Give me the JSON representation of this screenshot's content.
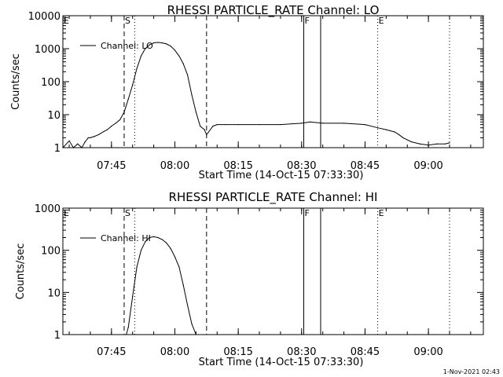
{
  "footer_stamp": "1-Nov-2021 02:43",
  "chart_data": [
    {
      "type": "line",
      "title": "RHESSI PARTICLE_RATE Channel: LO",
      "xlabel": "Start Time (14-Oct-15 07:33:30)",
      "ylabel": "Counts/sec",
      "y_scale": "log",
      "ylim": [
        1,
        10000
      ],
      "xlim": [
        "07:33:30",
        "09:13:00"
      ],
      "x_ticks": [
        "07:45",
        "08:00",
        "08:15",
        "08:30",
        "08:45",
        "09:00"
      ],
      "y_ticks": [
        "1",
        "10",
        "100",
        "1000",
        "10000"
      ],
      "legend": {
        "label": "Channel: LO",
        "placement": "top-left"
      },
      "markers": [
        {
          "time": "07:33:30",
          "label": "E",
          "style": "dotted"
        },
        {
          "time": "07:48:00",
          "label": "S",
          "style": "dashed"
        },
        {
          "time": "07:50:30",
          "label": "",
          "style": "dotted"
        },
        {
          "time": "08:07:30",
          "label": "",
          "style": "dashed"
        },
        {
          "time": "08:30:30",
          "label": "F",
          "style": "solid"
        },
        {
          "time": "08:34:30",
          "label": "",
          "style": "solid"
        },
        {
          "time": "08:48:00",
          "label": "E",
          "style": "dotted"
        },
        {
          "time": "09:05:00",
          "label": "",
          "style": "dotted"
        }
      ],
      "series": [
        {
          "x": [
            "07:33:30",
            "07:35:00",
            "07:36:00",
            "07:37:00",
            "07:38:00",
            "07:38:45",
            "07:39:30",
            "07:40:00",
            "07:41:00",
            "07:42:00",
            "07:43:00",
            "07:44:00",
            "07:45:00",
            "07:46:00",
            "07:47:00",
            "07:48:00",
            "07:49:00",
            "07:50:00",
            "07:51:00",
            "07:52:00",
            "07:53:00",
            "07:54:00",
            "07:55:00",
            "07:56:00",
            "07:57:00",
            "07:58:00",
            "07:59:00",
            "08:00:00",
            "08:01:00",
            "08:02:00",
            "08:03:00",
            "08:04:00",
            "08:05:00",
            "08:06:00",
            "08:07:00",
            "08:07:30",
            "08:08:00",
            "08:09:00",
            "08:10:00",
            "08:12:00",
            "08:15:00",
            "08:20:00",
            "08:25:00",
            "08:30:00",
            "08:32:00",
            "08:35:00",
            "08:40:00",
            "08:45:00",
            "08:48:00",
            "08:50:00",
            "08:52:00",
            "08:53:00",
            "08:54:00",
            "08:56:00",
            "08:58:00",
            "09:00:00",
            "09:02:00",
            "09:04:00",
            "09:05:00"
          ],
          "y": [
            1,
            1.6,
            1,
            1.3,
            1,
            1.5,
            2,
            2,
            2.2,
            2.5,
            3,
            3.5,
            4.5,
            5.5,
            7,
            12,
            30,
            80,
            250,
            600,
            1000,
            1300,
            1500,
            1550,
            1500,
            1400,
            1200,
            900,
            600,
            350,
            160,
            40,
            12,
            4.5,
            3.5,
            2.5,
            3,
            4.5,
            5,
            5,
            5,
            5,
            5,
            5.5,
            6,
            5.5,
            5.5,
            5,
            4,
            3.5,
            3,
            2.5,
            2,
            1.5,
            1.3,
            1.2,
            1.3,
            1.3,
            1.4
          ]
        }
      ]
    },
    {
      "type": "line",
      "title": "RHESSI PARTICLE_RATE Channel: HI",
      "xlabel": "Start Time (14-Oct-15 07:33:30)",
      "ylabel": "Counts/sec",
      "y_scale": "log",
      "ylim": [
        1,
        1000
      ],
      "xlim": [
        "07:33:30",
        "09:13:00"
      ],
      "x_ticks": [
        "07:45",
        "08:00",
        "08:15",
        "08:30",
        "08:45",
        "09:00"
      ],
      "y_ticks": [
        "1",
        "10",
        "100",
        "1000"
      ],
      "legend": {
        "label": "Channel: HI",
        "placement": "top-left"
      },
      "markers": [
        {
          "time": "07:33:30",
          "label": "E",
          "style": "dotted"
        },
        {
          "time": "07:48:00",
          "label": "S",
          "style": "dashed"
        },
        {
          "time": "07:50:30",
          "label": "",
          "style": "dotted"
        },
        {
          "time": "08:07:30",
          "label": "",
          "style": "dashed"
        },
        {
          "time": "08:30:30",
          "label": "F",
          "style": "solid"
        },
        {
          "time": "08:34:30",
          "label": "",
          "style": "solid"
        },
        {
          "time": "08:48:00",
          "label": "E",
          "style": "dotted"
        },
        {
          "time": "09:05:00",
          "label": "",
          "style": "dotted"
        }
      ],
      "series": [
        {
          "x": [
            "07:48:30",
            "07:49:00",
            "07:50:00",
            "07:51:00",
            "07:52:00",
            "07:53:00",
            "07:54:00",
            "07:55:00",
            "07:56:00",
            "07:57:00",
            "07:58:00",
            "07:59:00",
            "08:00:00",
            "08:01:00",
            "08:02:00",
            "08:03:00",
            "08:04:00",
            "08:05:00"
          ],
          "y": [
            1,
            1.5,
            8,
            40,
            100,
            160,
            200,
            210,
            200,
            180,
            150,
            110,
            70,
            40,
            15,
            5,
            1.8,
            1
          ]
        }
      ]
    }
  ]
}
